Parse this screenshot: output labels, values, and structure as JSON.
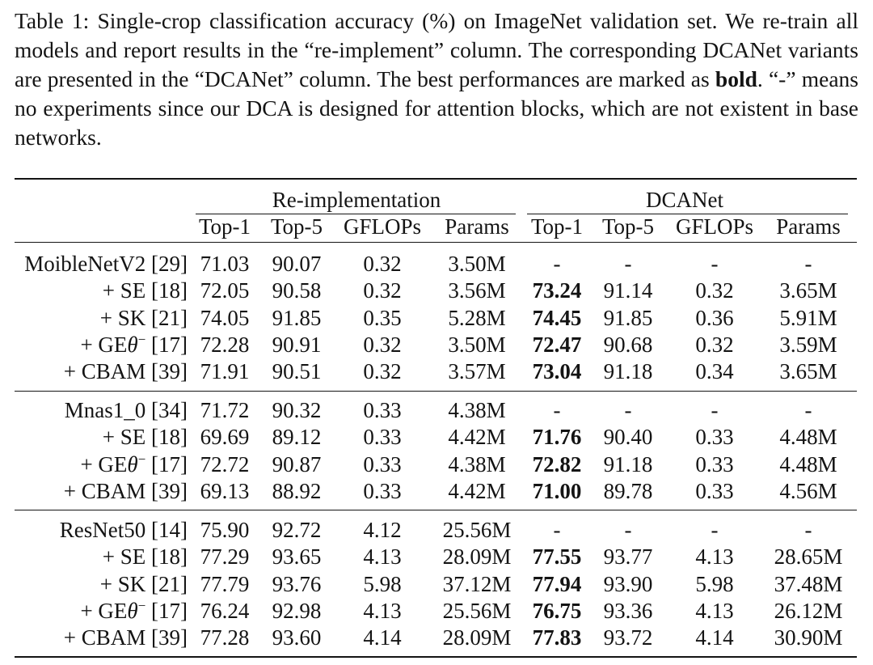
{
  "caption": {
    "part1": "Table 1: Single-crop classification accuracy (%) on ImageNet validation set. We re-train all models and report results in the “re-implement” column. The corresponding DCANet variants are presented in the “DCANet” column. The best performances are marked as ",
    "bold_word": "bold",
    "part2": ". “-” means no experiments since our DCA is designed for attention blocks, which are not existent in base networks."
  },
  "table": {
    "group_headers": [
      "Re-implementation",
      "DCANet"
    ],
    "columns": [
      "Top-1",
      "Top-5",
      "GFLOPs",
      "Params",
      "Top-1",
      "Top-5",
      "GFLOPs",
      "Params"
    ],
    "groups": [
      {
        "rows": [
          {
            "model": "MoibleNetV2 [29]",
            "re": [
              "71.03",
              "90.07",
              "0.32",
              "3.50M"
            ],
            "dca": [
              "-",
              "-",
              "-",
              "-"
            ]
          },
          {
            "model": "+ SE [18]",
            "re": [
              "72.05",
              "90.58",
              "0.32",
              "3.56M"
            ],
            "dca": [
              "73.24",
              "91.14",
              "0.32",
              "3.65M"
            ]
          },
          {
            "model": "+ SK [21]",
            "re": [
              "74.05",
              "91.85",
              "0.35",
              "5.28M"
            ],
            "dca": [
              "74.45",
              "91.85",
              "0.36",
              "5.91M"
            ]
          },
          {
            "model": "+ GEθ⁻ [17]",
            "re": [
              "72.28",
              "90.91",
              "0.32",
              "3.50M"
            ],
            "dca": [
              "72.47",
              "90.68",
              "0.32",
              "3.59M"
            ]
          },
          {
            "model": "+ CBAM [39]",
            "re": [
              "71.91",
              "90.51",
              "0.32",
              "3.57M"
            ],
            "dca": [
              "73.04",
              "91.18",
              "0.34",
              "3.65M"
            ]
          }
        ]
      },
      {
        "rows": [
          {
            "model": "Mnas1_0 [34]",
            "re": [
              "71.72",
              "90.32",
              "0.33",
              "4.38M"
            ],
            "dca": [
              "-",
              "-",
              "-",
              "-"
            ]
          },
          {
            "model": "+ SE [18]",
            "re": [
              "69.69",
              "89.12",
              "0.33",
              "4.42M"
            ],
            "dca": [
              "71.76",
              "90.40",
              "0.33",
              "4.48M"
            ]
          },
          {
            "model": "+ GEθ⁻ [17]",
            "re": [
              "72.72",
              "90.87",
              "0.33",
              "4.38M"
            ],
            "dca": [
              "72.82",
              "91.18",
              "0.33",
              "4.48M"
            ]
          },
          {
            "model": "+ CBAM [39]",
            "re": [
              "69.13",
              "88.92",
              "0.33",
              "4.42M"
            ],
            "dca": [
              "71.00",
              "89.78",
              "0.33",
              "4.56M"
            ]
          }
        ]
      },
      {
        "rows": [
          {
            "model": "ResNet50 [14]",
            "re": [
              "75.90",
              "92.72",
              "4.12",
              "25.56M"
            ],
            "dca": [
              "-",
              "-",
              "-",
              "-"
            ]
          },
          {
            "model": "+ SE [18]",
            "re": [
              "77.29",
              "93.65",
              "4.13",
              "28.09M"
            ],
            "dca": [
              "77.55",
              "93.77",
              "4.13",
              "28.65M"
            ]
          },
          {
            "model": "+ SK [21]",
            "re": [
              "77.79",
              "93.76",
              "5.98",
              "37.12M"
            ],
            "dca": [
              "77.94",
              "93.90",
              "5.98",
              "37.48M"
            ]
          },
          {
            "model": "+ GEθ⁻ [17]",
            "re": [
              "76.24",
              "92.98",
              "4.13",
              "25.56M"
            ],
            "dca": [
              "76.75",
              "93.36",
              "4.13",
              "26.12M"
            ]
          },
          {
            "model": "+ CBAM [39]",
            "re": [
              "77.28",
              "93.60",
              "4.14",
              "28.09M"
            ],
            "dca": [
              "77.83",
              "93.72",
              "4.14",
              "30.90M"
            ]
          }
        ]
      }
    ]
  }
}
